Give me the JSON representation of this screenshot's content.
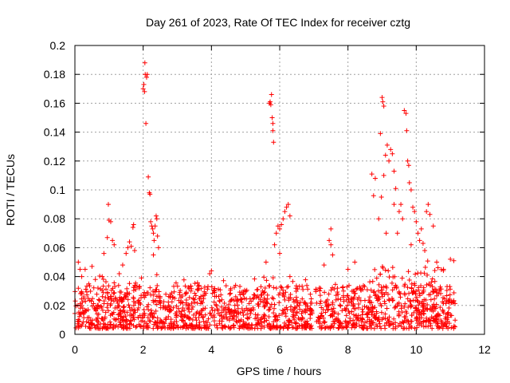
{
  "chart_data": {
    "type": "scatter",
    "title": "Day 261 of 2023, Rate Of TEC Index for receiver cztg",
    "xlabel": "GPS time / hours",
    "ylabel": "ROTI / TECUs",
    "xlim": [
      0,
      12
    ],
    "ylim": [
      0,
      0.2
    ],
    "x_ticks": [
      "0",
      "2",
      "4",
      "6",
      "8",
      "10",
      "12"
    ],
    "y_ticks": [
      "0",
      "0.02",
      "0.04",
      "0.06",
      "0.08",
      "0.1",
      "0.12",
      "0.14",
      "0.16",
      "0.18",
      "0.2"
    ],
    "grid": true,
    "marker": "+",
    "marker_color": "#ff0000",
    "series": [
      {
        "points": [
          [
            0.1,
            0.05
          ],
          [
            0.15,
            0.045
          ],
          [
            0.2,
            0.04
          ],
          [
            0.3,
            0.045
          ],
          [
            0.5,
            0.047
          ],
          [
            0.6,
            0.038
          ],
          [
            0.8,
            0.04
          ],
          [
            0.85,
            0.056
          ],
          [
            0.95,
            0.067
          ],
          [
            0.98,
            0.09
          ],
          [
            1.0,
            0.079
          ],
          [
            1.05,
            0.078
          ],
          [
            1.1,
            0.065
          ],
          [
            1.15,
            0.062
          ],
          [
            1.3,
            0.042
          ],
          [
            1.4,
            0.048
          ],
          [
            1.5,
            0.056
          ],
          [
            1.55,
            0.06
          ],
          [
            1.6,
            0.064
          ],
          [
            1.65,
            0.061
          ],
          [
            1.7,
            0.074
          ],
          [
            1.72,
            0.076
          ],
          [
            1.75,
            0.058
          ],
          [
            1.95,
            0.039
          ],
          [
            2.0,
            0.17
          ],
          [
            2.02,
            0.173
          ],
          [
            2.04,
            0.168
          ],
          [
            2.05,
            0.188
          ],
          [
            2.06,
            0.18
          ],
          [
            2.08,
            0.146
          ],
          [
            2.1,
            0.178
          ],
          [
            2.12,
            0.18
          ],
          [
            2.15,
            0.109
          ],
          [
            2.18,
            0.098
          ],
          [
            2.2,
            0.097
          ],
          [
            2.22,
            0.078
          ],
          [
            2.25,
            0.075
          ],
          [
            2.28,
            0.073
          ],
          [
            2.3,
            0.07
          ],
          [
            2.32,
            0.065
          ],
          [
            2.35,
            0.075
          ],
          [
            2.38,
            0.082
          ],
          [
            2.4,
            0.08
          ],
          [
            2.42,
            0.068
          ],
          [
            2.45,
            0.06
          ],
          [
            2.3,
            0.055
          ],
          [
            3.4,
            0.03
          ],
          [
            3.95,
            0.042
          ],
          [
            4.0,
            0.044
          ],
          [
            5.45,
            0.033
          ],
          [
            5.6,
            0.05
          ],
          [
            5.7,
            0.16
          ],
          [
            5.72,
            0.161
          ],
          [
            5.74,
            0.159
          ],
          [
            5.76,
            0.166
          ],
          [
            5.78,
            0.15
          ],
          [
            5.8,
            0.141
          ],
          [
            5.82,
            0.133
          ],
          [
            5.8,
            0.146
          ],
          [
            5.85,
            0.062
          ],
          [
            5.9,
            0.07
          ],
          [
            5.95,
            0.075
          ],
          [
            6.0,
            0.073
          ],
          [
            6.05,
            0.076
          ],
          [
            6.1,
            0.08
          ],
          [
            6.15,
            0.085
          ],
          [
            6.2,
            0.088
          ],
          [
            6.25,
            0.09
          ],
          [
            6.3,
            0.082
          ],
          [
            6.0,
            0.056
          ],
          [
            6.3,
            0.04
          ],
          [
            7.3,
            0.048
          ],
          [
            7.45,
            0.065
          ],
          [
            7.5,
            0.062
          ],
          [
            7.55,
            0.055
          ],
          [
            7.5,
            0.073
          ],
          [
            8.0,
            0.045
          ],
          [
            8.2,
            0.05
          ],
          [
            8.7,
            0.111
          ],
          [
            8.75,
            0.096
          ],
          [
            8.8,
            0.108
          ],
          [
            8.9,
            0.08
          ],
          [
            8.95,
            0.139
          ],
          [
            9.0,
            0.164
          ],
          [
            9.02,
            0.161
          ],
          [
            9.05,
            0.158
          ],
          [
            9.1,
            0.124
          ],
          [
            9.15,
            0.131
          ],
          [
            9.2,
            0.12
          ],
          [
            9.25,
            0.128
          ],
          [
            9.3,
            0.125
          ],
          [
            9.35,
            0.113
          ],
          [
            9.4,
            0.101
          ],
          [
            9.5,
            0.085
          ],
          [
            9.55,
            0.09
          ],
          [
            9.6,
            0.08
          ],
          [
            9.65,
            0.155
          ],
          [
            9.7,
            0.153
          ],
          [
            9.72,
            0.141
          ],
          [
            9.75,
            0.12
          ],
          [
            9.78,
            0.117
          ],
          [
            9.8,
            0.105
          ],
          [
            9.85,
            0.1
          ],
          [
            9.9,
            0.088
          ],
          [
            9.95,
            0.085
          ],
          [
            10.0,
            0.078
          ],
          [
            10.05,
            0.07
          ],
          [
            10.1,
            0.065
          ],
          [
            10.2,
            0.063
          ],
          [
            10.3,
            0.085
          ],
          [
            10.35,
            0.09
          ],
          [
            10.4,
            0.083
          ],
          [
            10.5,
            0.075
          ],
          [
            10.6,
            0.05
          ],
          [
            10.8,
            0.045
          ],
          [
            11.0,
            0.052
          ],
          [
            11.1,
            0.051
          ],
          [
            9.05,
            0.11
          ],
          [
            8.98,
            0.095
          ],
          [
            9.35,
            0.09
          ],
          [
            9.12,
            0.07
          ],
          [
            9.45,
            0.07
          ],
          [
            9.85,
            0.062
          ],
          [
            10.25,
            0.058
          ],
          [
            10.15,
            0.073
          ]
        ]
      }
    ]
  }
}
